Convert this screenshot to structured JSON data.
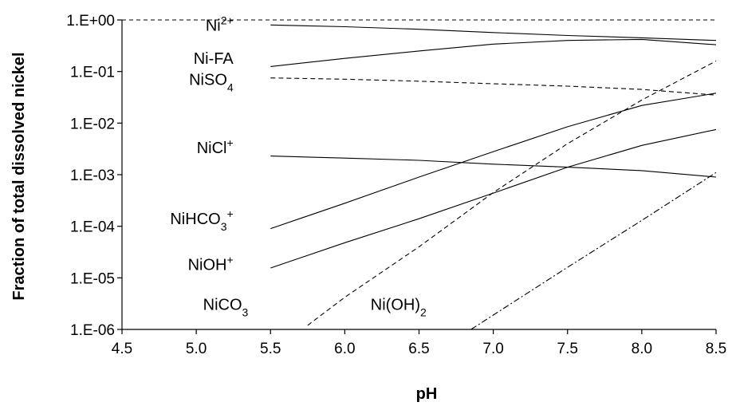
{
  "chart_data": {
    "type": "line",
    "title": "",
    "xlabel": "pH",
    "ylabel": "Fraction of total dissolved nickel",
    "xlim": [
      4.5,
      8.5
    ],
    "ylim": [
      1e-06,
      1
    ],
    "yscale": "log",
    "grid": false,
    "legend": "none (series labeled inline)",
    "x_ticks": [
      "4.5",
      "5.0",
      "5.5",
      "6.0",
      "6.5",
      "7.0",
      "7.5",
      "8.0",
      "8.5"
    ],
    "y_ticks": [
      "1.E-06",
      "1.E-05",
      "1.E-04",
      "1.E-03",
      "1.E-02",
      "1.E-01",
      "1.E+00"
    ],
    "reference_line": {
      "y": 1,
      "style": "dashed"
    },
    "series": [
      {
        "label": "Ni",
        "sup": "2+",
        "sub": "",
        "style": "solid",
        "label_pos": [
          5.25,
          0.62
        ],
        "x": [
          5.5,
          6.0,
          6.5,
          7.0,
          7.5,
          8.0,
          8.5
        ],
        "y": [
          0.8,
          0.74,
          0.66,
          0.57,
          0.5,
          0.45,
          0.4
        ]
      },
      {
        "label": "Ni-FA",
        "sup": "",
        "sub": "",
        "style": "solid",
        "label_pos": [
          5.25,
          0.14
        ],
        "x": [
          5.5,
          6.0,
          6.5,
          7.0,
          7.5,
          8.0,
          8.5
        ],
        "y": [
          0.125,
          0.18,
          0.25,
          0.34,
          0.4,
          0.42,
          0.33
        ]
      },
      {
        "label": "NiSO",
        "sup": "",
        "sub": "4",
        "style": "dashed",
        "label_pos": [
          5.25,
          0.055
        ],
        "x": [
          5.5,
          6.0,
          6.5,
          7.0,
          7.5,
          8.0,
          8.5
        ],
        "y": [
          0.075,
          0.071,
          0.065,
          0.058,
          0.052,
          0.045,
          0.035
        ]
      },
      {
        "label": "NiCl",
        "sup": "+",
        "sub": "",
        "style": "solid",
        "label_pos": [
          5.25,
          0.0026
        ],
        "x": [
          5.5,
          6.0,
          6.5,
          7.0,
          7.5,
          8.0,
          8.5
        ],
        "y": [
          0.0023,
          0.0021,
          0.0019,
          0.0016,
          0.0014,
          0.0012,
          0.0009
        ]
      },
      {
        "label": "NiHCO",
        "sup": "+",
        "sub": "3",
        "style": "solid",
        "label_pos": [
          5.25,
          0.00011
        ],
        "x": [
          5.5,
          6.0,
          6.5,
          7.0,
          7.5,
          8.0,
          8.5
        ],
        "y": [
          9e-05,
          0.00028,
          0.0009,
          0.0028,
          0.0085,
          0.022,
          0.038
        ]
      },
      {
        "label": "NiOH",
        "sup": "+",
        "sub": "",
        "style": "solid",
        "label_pos": [
          5.25,
          1.42e-05
        ],
        "x": [
          5.5,
          6.0,
          6.5,
          7.0,
          7.5,
          8.0,
          8.5
        ],
        "y": [
          1.55e-05,
          4.8e-05,
          0.00014,
          0.00044,
          0.0014,
          0.0037,
          0.0075
        ]
      },
      {
        "label": "NiCO",
        "sup": "",
        "sub": "3",
        "style": "dashed",
        "label_pos": [
          5.35,
          2.4e-06
        ],
        "x": [
          5.75,
          6.0,
          6.5,
          7.0,
          7.5,
          8.0,
          8.5
        ],
        "y": [
          1.2e-06,
          4.2e-06,
          4e-05,
          0.00045,
          0.004,
          0.028,
          0.16
        ]
      },
      {
        "label": "Ni(OH)",
        "sup": "",
        "sub": "2",
        "style": "dashdot",
        "label_pos": [
          6.55,
          2.4e-06
        ],
        "x": [
          6.85,
          7.0,
          7.5,
          8.0,
          8.5
        ],
        "y": [
          1e-06,
          1.9e-06,
          1.6e-05,
          0.00013,
          0.0011
        ]
      }
    ]
  }
}
